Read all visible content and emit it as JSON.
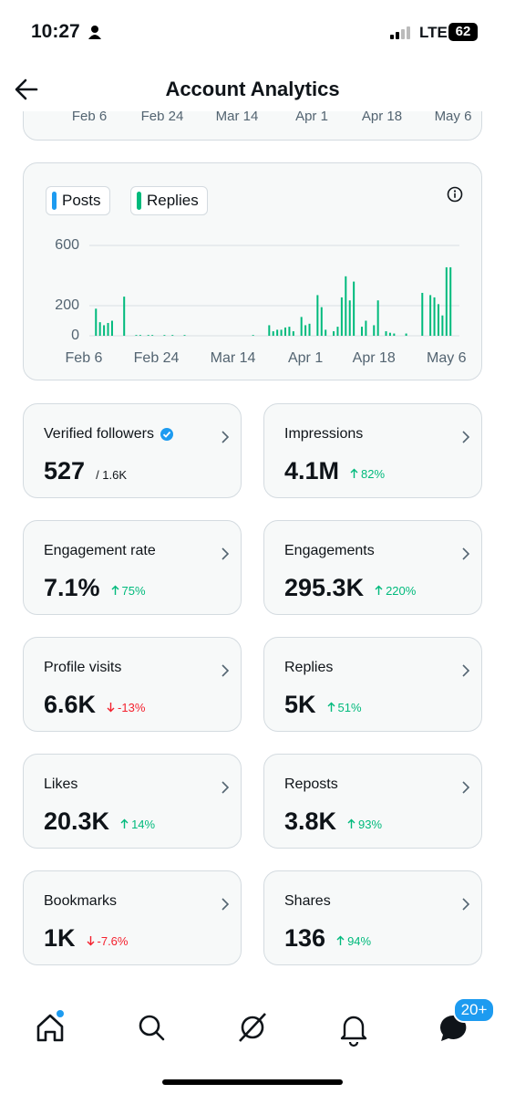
{
  "status_bar": {
    "time": "10:27",
    "network": "LTE",
    "battery": "62"
  },
  "header": {
    "title": "Account Analytics"
  },
  "previous_chart": {
    "x_labels": [
      "Feb 6",
      "Feb 24",
      "Mar 14",
      "Apr 1",
      "Apr 18",
      "May 6"
    ]
  },
  "chart_data": {
    "type": "bar",
    "categories": [
      "Feb 6",
      null,
      null,
      null,
      null,
      null,
      null,
      null,
      null,
      null,
      null,
      null,
      null,
      null,
      null,
      null,
      null,
      null,
      "Feb 24",
      null,
      null,
      null,
      null,
      null,
      null,
      null,
      null,
      null,
      null,
      null,
      null,
      null,
      null,
      null,
      null,
      null,
      null,
      "Mar 14",
      null,
      null,
      null,
      null,
      null,
      null,
      null,
      null,
      null,
      null,
      null,
      null,
      null,
      null,
      null,
      null,
      null,
      "Apr 1",
      null,
      null,
      null,
      null,
      null,
      null,
      null,
      null,
      null,
      null,
      null,
      null,
      null,
      null,
      null,
      null,
      "Apr 18",
      null,
      null,
      null,
      null,
      null,
      null,
      null,
      null,
      null,
      null,
      null,
      null,
      null,
      null,
      null,
      null,
      null,
      "May 6",
      null
    ],
    "series": [
      {
        "name": "Posts",
        "color": "#1d9bf0",
        "values": [
          0,
          0,
          0,
          0,
          0,
          0,
          0,
          0,
          0,
          0,
          0,
          0,
          0,
          0,
          0,
          0,
          0,
          0,
          0,
          0,
          0,
          0,
          0,
          0,
          0,
          0,
          0,
          0,
          0,
          0,
          0,
          0,
          0,
          0,
          0,
          0,
          0,
          0,
          0,
          0,
          0,
          0,
          0,
          0,
          0,
          0,
          0,
          0,
          0,
          0,
          0,
          0,
          0,
          0,
          0,
          0,
          0,
          0,
          0,
          0,
          0,
          0,
          0,
          0,
          0,
          0,
          0,
          0,
          0,
          0,
          0,
          0,
          0,
          0,
          0,
          0,
          0,
          0,
          0,
          0,
          0,
          0,
          0,
          0,
          0,
          0,
          0,
          0,
          0,
          0,
          0,
          0
        ]
      },
      {
        "name": "Replies",
        "color": "#00ba7c",
        "values": [
          0,
          0,
          0,
          180,
          90,
          70,
          85,
          100,
          0,
          0,
          260,
          0,
          0,
          5,
          5,
          0,
          5,
          5,
          0,
          0,
          5,
          0,
          5,
          0,
          0,
          5,
          0,
          0,
          0,
          0,
          0,
          0,
          0,
          0,
          0,
          0,
          0,
          0,
          0,
          0,
          0,
          0,
          5,
          0,
          0,
          0,
          70,
          30,
          40,
          40,
          55,
          60,
          30,
          0,
          125,
          70,
          80,
          0,
          270,
          190,
          40,
          0,
          30,
          60,
          255,
          395,
          235,
          360,
          0,
          60,
          100,
          0,
          70,
          235,
          0,
          30,
          20,
          15,
          0,
          0,
          15,
          0,
          0,
          0,
          285,
          0,
          270,
          255,
          210,
          135,
          455,
          455
        ]
      }
    ],
    "ylim": [
      0,
      640
    ],
    "yticks": [
      0,
      200,
      600
    ],
    "grid": true
  },
  "metrics": [
    {
      "label": "Verified followers",
      "value": "527",
      "total": "/ 1.6K",
      "verified": true
    },
    {
      "label": "Impressions",
      "value": "4.1M",
      "change": "82%",
      "trend": "up"
    },
    {
      "label": "Engagement rate",
      "value": "7.1%",
      "change": "75%",
      "trend": "up"
    },
    {
      "label": "Engagements",
      "value": "295.3K",
      "change": "220%",
      "trend": "up"
    },
    {
      "label": "Profile visits",
      "value": "6.6K",
      "change": "-13%",
      "trend": "down"
    },
    {
      "label": "Replies",
      "value": "5K",
      "change": "51%",
      "trend": "up"
    },
    {
      "label": "Likes",
      "value": "20.3K",
      "change": "14%",
      "trend": "up"
    },
    {
      "label": "Reposts",
      "value": "3.8K",
      "change": "93%",
      "trend": "up"
    },
    {
      "label": "Bookmarks",
      "value": "1K",
      "change": "-7.6%",
      "trend": "down"
    },
    {
      "label": "Shares",
      "value": "136",
      "change": "94%",
      "trend": "up"
    }
  ],
  "nav": {
    "notification_badge": "20+"
  }
}
